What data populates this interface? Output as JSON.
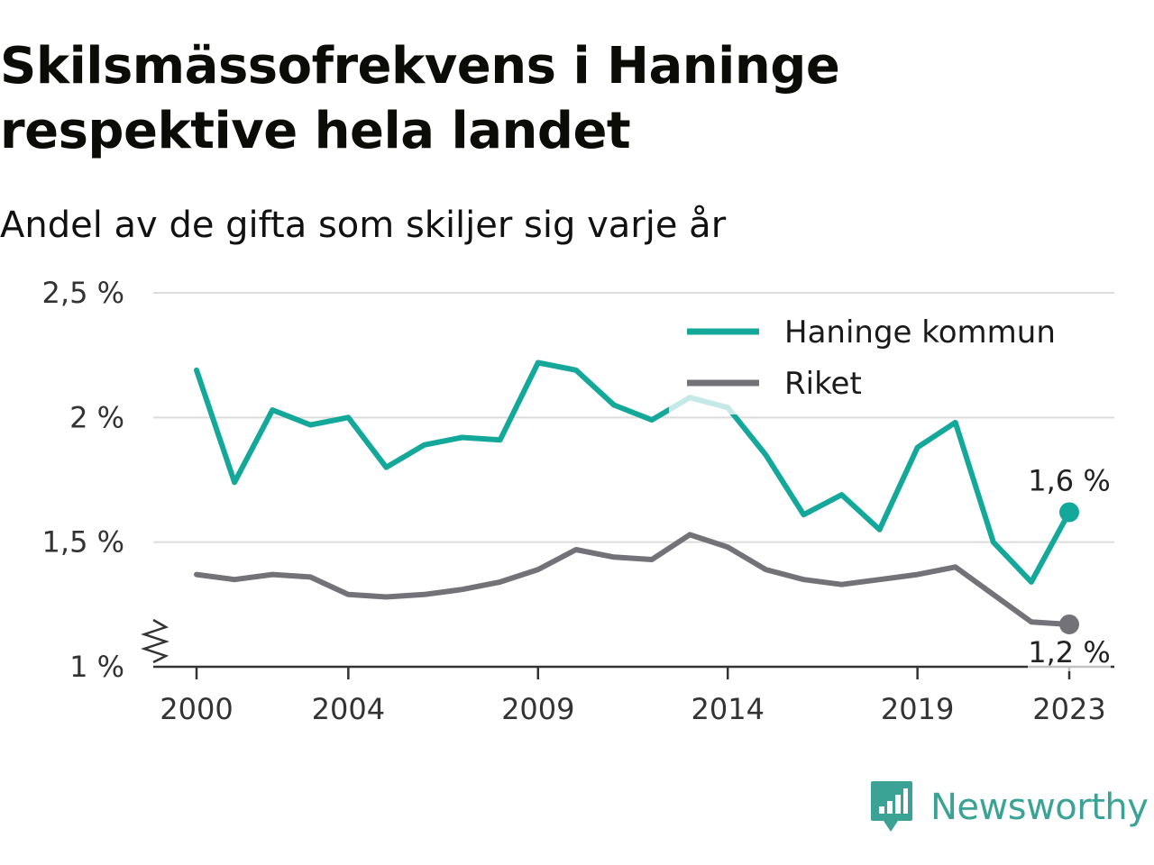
{
  "title": "Skilsmässofrekvens i Haninge respektive hela landet",
  "subtitle": "Andel av de gifta som skiljer sig varje år",
  "brand": "Newsworthy",
  "chart_data": {
    "type": "line",
    "title": "Skilsmässofrekvens i Haninge respektive hela landet",
    "subtitle": "Andel av de gifta som skiljer sig varje år",
    "x": [
      2000,
      2001,
      2002,
      2003,
      2004,
      2005,
      2006,
      2007,
      2008,
      2009,
      2010,
      2011,
      2012,
      2013,
      2014,
      2015,
      2016,
      2017,
      2018,
      2019,
      2020,
      2021,
      2022,
      2023
    ],
    "x_ticks": [
      2000,
      2004,
      2009,
      2014,
      2019,
      2023
    ],
    "y_ticks": [
      1,
      1.5,
      2,
      2.5
    ],
    "y_tick_labels": [
      "1 %",
      "1,5 %",
      "2 %",
      "2,5 %"
    ],
    "ylim": [
      1,
      2.5
    ],
    "y_axis_break": true,
    "grid": true,
    "legend_position": "top-right",
    "series": [
      {
        "name": "Haninge kommun",
        "color": "#14a89a",
        "values": [
          2.19,
          1.74,
          2.03,
          1.97,
          2.0,
          1.8,
          1.89,
          1.92,
          1.91,
          2.22,
          2.19,
          2.05,
          1.99,
          2.08,
          2.04,
          1.85,
          1.61,
          1.69,
          1.55,
          1.88,
          1.98,
          1.5,
          1.34,
          1.62
        ],
        "end_label": "1,6 %"
      },
      {
        "name": "Riket",
        "color": "#737279",
        "values": [
          1.37,
          1.35,
          1.37,
          1.36,
          1.29,
          1.28,
          1.29,
          1.31,
          1.34,
          1.39,
          1.47,
          1.44,
          1.43,
          1.53,
          1.48,
          1.39,
          1.35,
          1.33,
          1.35,
          1.37,
          1.4,
          1.29,
          1.18,
          1.17
        ],
        "end_label": "1,2 %"
      }
    ]
  }
}
